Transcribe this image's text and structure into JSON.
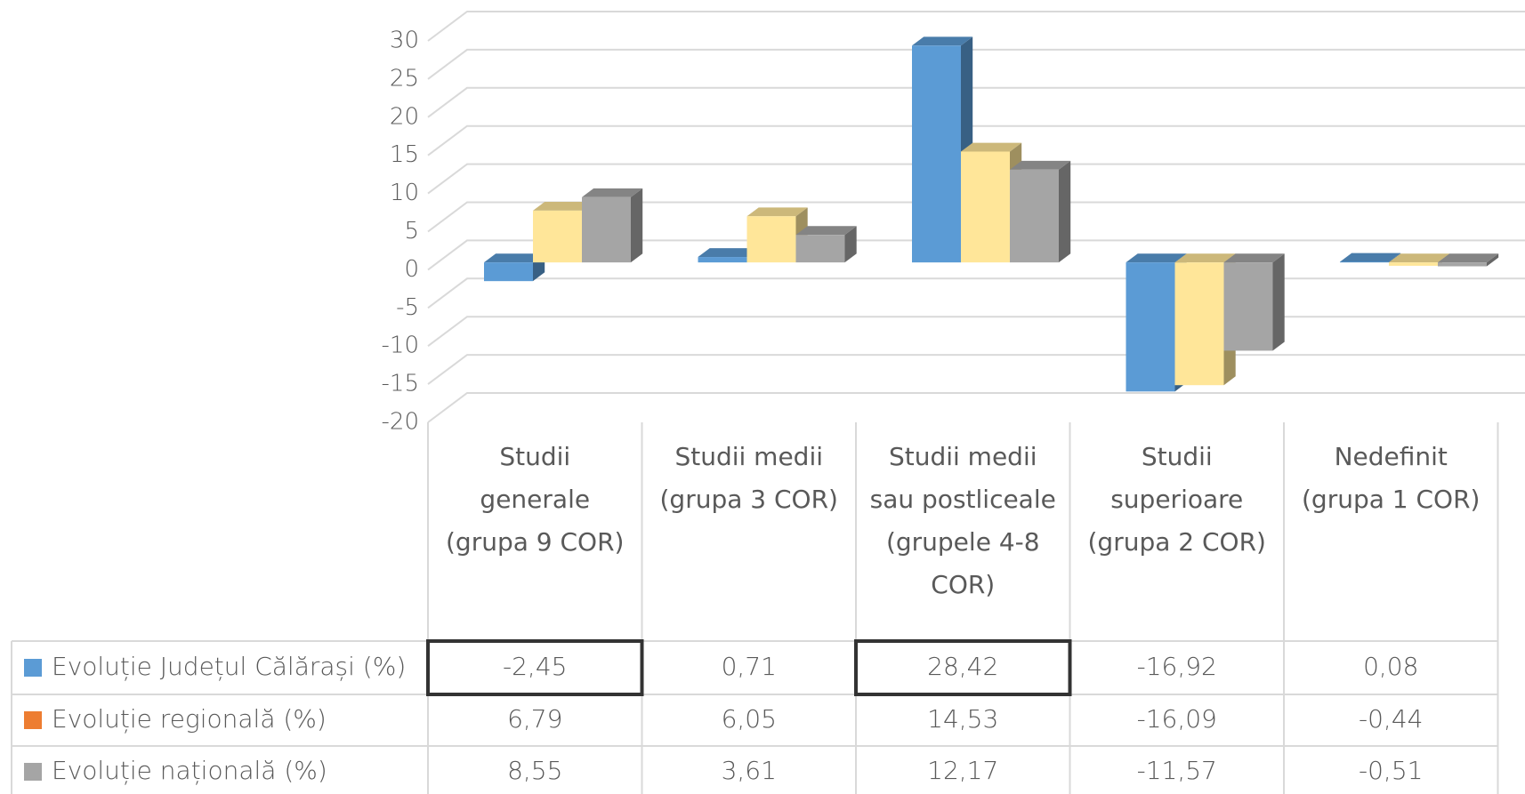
{
  "chart_data": {
    "type": "bar3d",
    "categories": [
      "Studii generale (grupa 9 COR)",
      "Studii medii (grupa 3 COR)",
      "Studii medii sau postliceale (grupele 4-8 COR)",
      "Studii superioare (grupa 2 COR)",
      "Nedefinit (grupa 1 COR)"
    ],
    "series": [
      {
        "name": "Evoluție Județul Călărași (%)",
        "color": "#5b9bd5",
        "legend_color": "#5b9bd5",
        "values": [
          -2.45,
          0.71,
          28.42,
          -16.92,
          0.08
        ],
        "value_labels": [
          "-2,45",
          "0,71",
          "28,42",
          "-16,92",
          "0,08"
        ]
      },
      {
        "name": "Evoluție regională (%)",
        "color": "#ffe699",
        "legend_color": "#ed7d31",
        "values": [
          6.79,
          6.05,
          14.53,
          -16.09,
          -0.44
        ],
        "value_labels": [
          "6,79",
          "6,05",
          "14,53",
          "-16,09",
          "-0,44"
        ]
      },
      {
        "name": "Evoluție națională (%)",
        "color": "#a5a5a5",
        "legend_color": "#a5a5a5",
        "values": [
          8.55,
          3.61,
          12.17,
          -11.57,
          -0.51
        ],
        "value_labels": [
          "8,55",
          "3,61",
          "12,17",
          "-11,57",
          "-0,51"
        ]
      }
    ],
    "ylim": [
      -20,
      30
    ],
    "yticks": [
      -20,
      -15,
      -10,
      -5,
      0,
      5,
      10,
      15,
      20,
      25,
      30
    ],
    "grid": true,
    "highlighted_cells": [
      [
        0,
        0
      ],
      [
        0,
        2
      ]
    ]
  }
}
